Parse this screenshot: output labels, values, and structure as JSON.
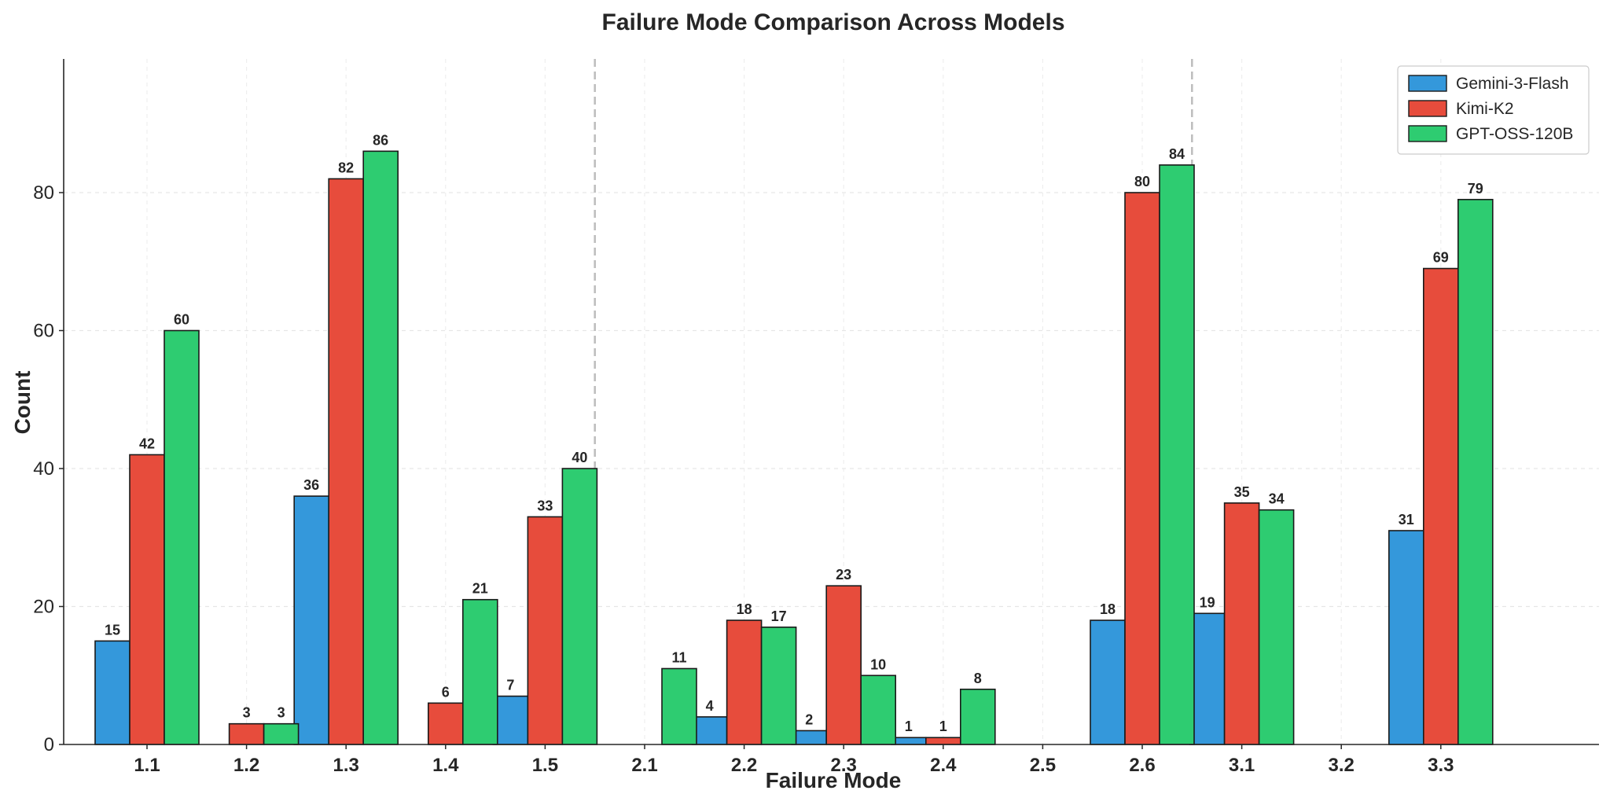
{
  "chart_data": {
    "type": "bar",
    "title": "Failure Mode Comparison Across Models",
    "xlabel": "Failure Mode",
    "ylabel": "Count",
    "ylim": [
      0,
      100
    ],
    "yticks": [
      0,
      20,
      40,
      60,
      80
    ],
    "grid": true,
    "legend_position": "top-right",
    "categories": [
      "1.1",
      "1.2",
      "1.3",
      "1.4",
      "1.5",
      "2.1",
      "2.2",
      "2.3",
      "2.4",
      "2.5",
      "2.6",
      "3.1",
      "3.2",
      "3.3"
    ],
    "group_separators_after": [
      "1.5",
      "2.6"
    ],
    "series": [
      {
        "name": "Gemini-3-Flash",
        "color": "#3498db",
        "values": [
          15,
          0,
          36,
          0,
          7,
          0,
          4,
          2,
          1,
          0,
          18,
          19,
          0,
          31
        ]
      },
      {
        "name": "Kimi-K2",
        "color": "#e74c3c",
        "values": [
          42,
          3,
          82,
          6,
          33,
          0,
          18,
          23,
          1,
          0,
          80,
          35,
          0,
          69
        ]
      },
      {
        "name": "GPT-OSS-120B",
        "color": "#2ecc71",
        "values": [
          60,
          3,
          86,
          21,
          40,
          11,
          17,
          10,
          8,
          0,
          84,
          34,
          0,
          79
        ]
      }
    ]
  }
}
